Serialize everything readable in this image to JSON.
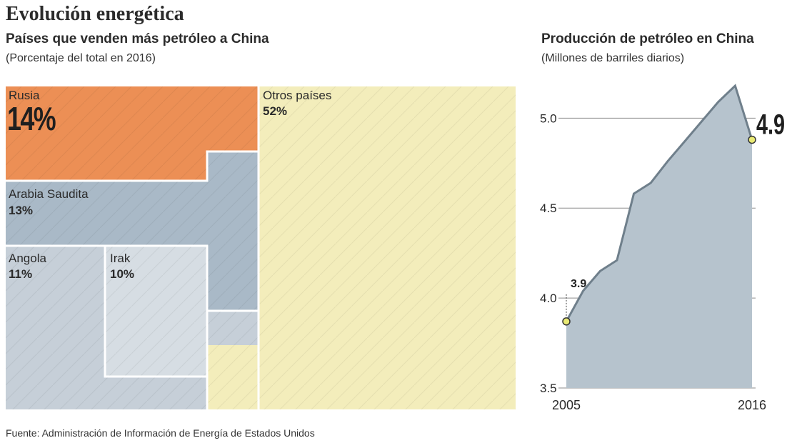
{
  "header": {
    "title": "Evolución energética"
  },
  "left_panel": {
    "subtitle": "Países que venden más petróleo a China",
    "note": "(Porcentaje del total en 2016)"
  },
  "right_panel": {
    "subtitle": "Producción de petróleo en China",
    "note": "(Millones de barriles diarios)"
  },
  "footer": {
    "source": "Fuente: Administración de Información de Energía de Estados Unidos"
  },
  "colors": {
    "rusia": "#ec8f55",
    "arabia": "#a9b9c7",
    "angola": "#c6cfd8",
    "irak": "#d6dde3",
    "otros": "#f3edbb",
    "area_fill": "#b6c3cd",
    "area_line": "#6f7f8b",
    "marker": "#e9ea74"
  },
  "chart_data": [
    {
      "type": "treemap",
      "title": "Países que venden más petróleo a China",
      "subtitle": "(Porcentaje del total en 2016)",
      "items": [
        {
          "name": "Rusia",
          "label": "14%",
          "value": 14
        },
        {
          "name": "Arabia Saudita",
          "label": "13%",
          "value": 13
        },
        {
          "name": "Angola",
          "label": "11%",
          "value": 11
        },
        {
          "name": "Irak",
          "label": "10%",
          "value": 10
        },
        {
          "name": "Otros países",
          "label": "52%",
          "value": 52
        }
      ]
    },
    {
      "type": "area",
      "title": "Producción de petróleo en China",
      "subtitle": "(Millones de barriles diarios)",
      "x": [
        2005,
        2006,
        2007,
        2008,
        2009,
        2010,
        2011,
        2012,
        2013,
        2014,
        2015,
        2016
      ],
      "y": [
        3.87,
        4.04,
        4.15,
        4.21,
        4.58,
        4.64,
        4.76,
        4.87,
        4.98,
        5.09,
        5.18,
        4.88
      ],
      "y_ticks": [
        "3.5",
        "4.0",
        "4.5",
        "5.0"
      ],
      "ylim": [
        3.5,
        5.2
      ],
      "x_labels": [
        "2005",
        "2016"
      ],
      "annotations": {
        "start": "3.9",
        "end": "4.9"
      }
    }
  ]
}
